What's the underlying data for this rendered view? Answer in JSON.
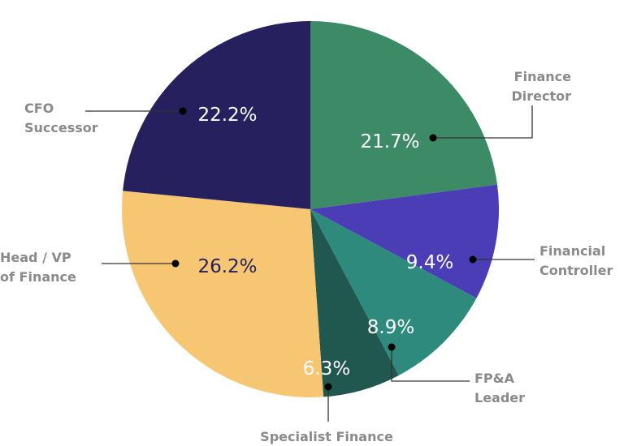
{
  "chart_data": {
    "type": "pie",
    "title": "",
    "start": "top",
    "direction": "clockwise",
    "slices": [
      {
        "name": "Finance Director",
        "label_lines": [
          "Finance",
          "Director"
        ],
        "value": 21.7,
        "display": "21.7%",
        "color": "#3d8a67",
        "text_color": "#ffffff"
      },
      {
        "name": "Financial Controller",
        "label_lines": [
          "Financial",
          "Controller"
        ],
        "value": 9.4,
        "display": "9.4%",
        "color": "#4a3db5",
        "text_color": "#ffffff"
      },
      {
        "name": "FP&A Leader",
        "label_lines": [
          "FP&A",
          "Leader"
        ],
        "value": 8.9,
        "display": "8.9%",
        "color": "#2f8a7e",
        "text_color": "#ffffff"
      },
      {
        "name": "Specialist Finance",
        "label_lines": [
          "Specialist Finance"
        ],
        "value": 6.3,
        "display": "6.3%",
        "color": "#20574f",
        "text_color": "#ffffff"
      },
      {
        "name": "Head / VP of Finance",
        "label_lines": [
          "Head / VP",
          "of Finance"
        ],
        "value": 26.2,
        "display": "26.2%",
        "color": "#f7c672",
        "text_color": "#27205e"
      },
      {
        "name": "CFO Successor",
        "label_lines": [
          "CFO",
          "Successor"
        ],
        "value": 22.2,
        "display": "22.2%",
        "color": "#27205e",
        "text_color": "#ffffff"
      }
    ],
    "label_color": "#8a8a8a",
    "leader_color": "#333333"
  }
}
